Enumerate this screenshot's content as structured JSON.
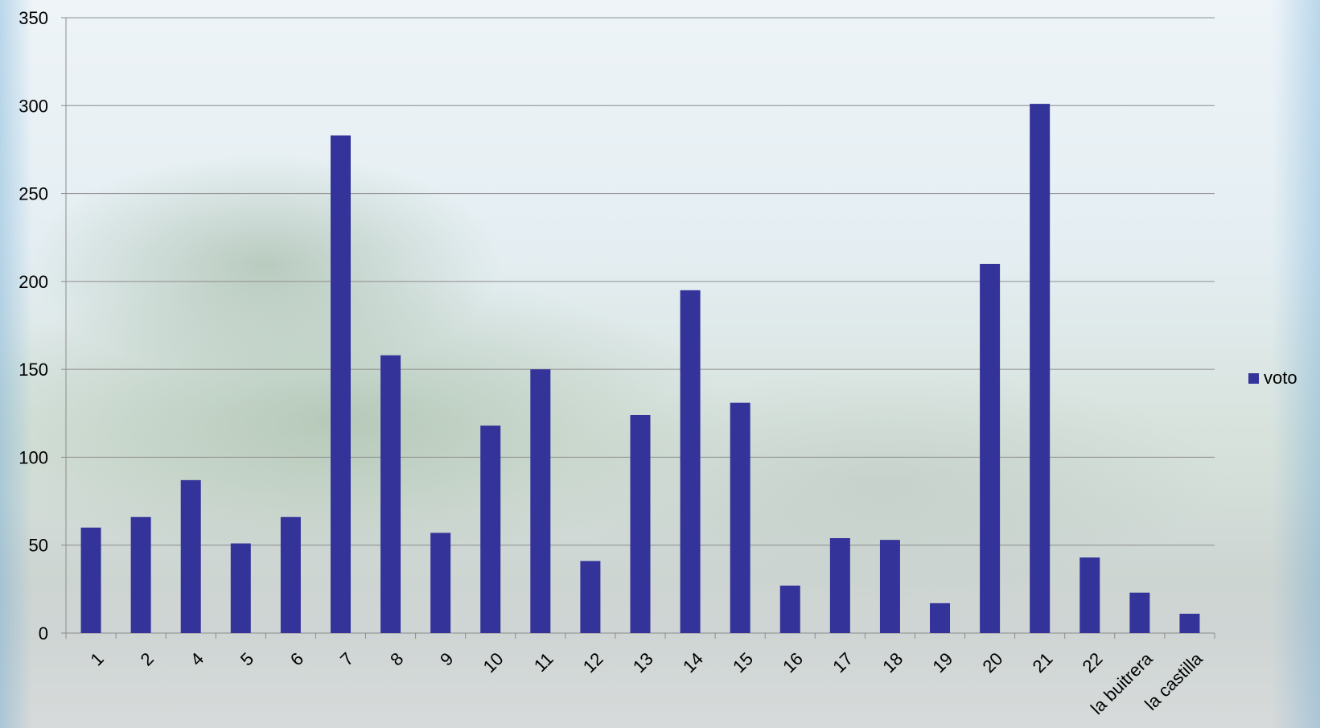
{
  "chart_data": {
    "type": "bar",
    "categories": [
      "1",
      "2",
      "4",
      "5",
      "6",
      "7",
      "8",
      "9",
      "10",
      "11",
      "12",
      "13",
      "14",
      "15",
      "16",
      "17",
      "18",
      "19",
      "20",
      "21",
      "22",
      "la buitrera",
      "la castilla"
    ],
    "series": [
      {
        "name": "voto",
        "color": "#333399",
        "values": [
          60,
          66,
          87,
          51,
          66,
          283,
          158,
          57,
          118,
          150,
          41,
          124,
          195,
          131,
          27,
          54,
          53,
          17,
          210,
          301,
          43,
          23,
          11
        ]
      }
    ],
    "ylim": [
      0,
      350
    ],
    "yticks": [
      0,
      50,
      100,
      150,
      200,
      250,
      300,
      350
    ],
    "grid": true,
    "legend_position": "right",
    "x_tick_rotation": "diagonal"
  },
  "legend": {
    "label": "voto"
  }
}
